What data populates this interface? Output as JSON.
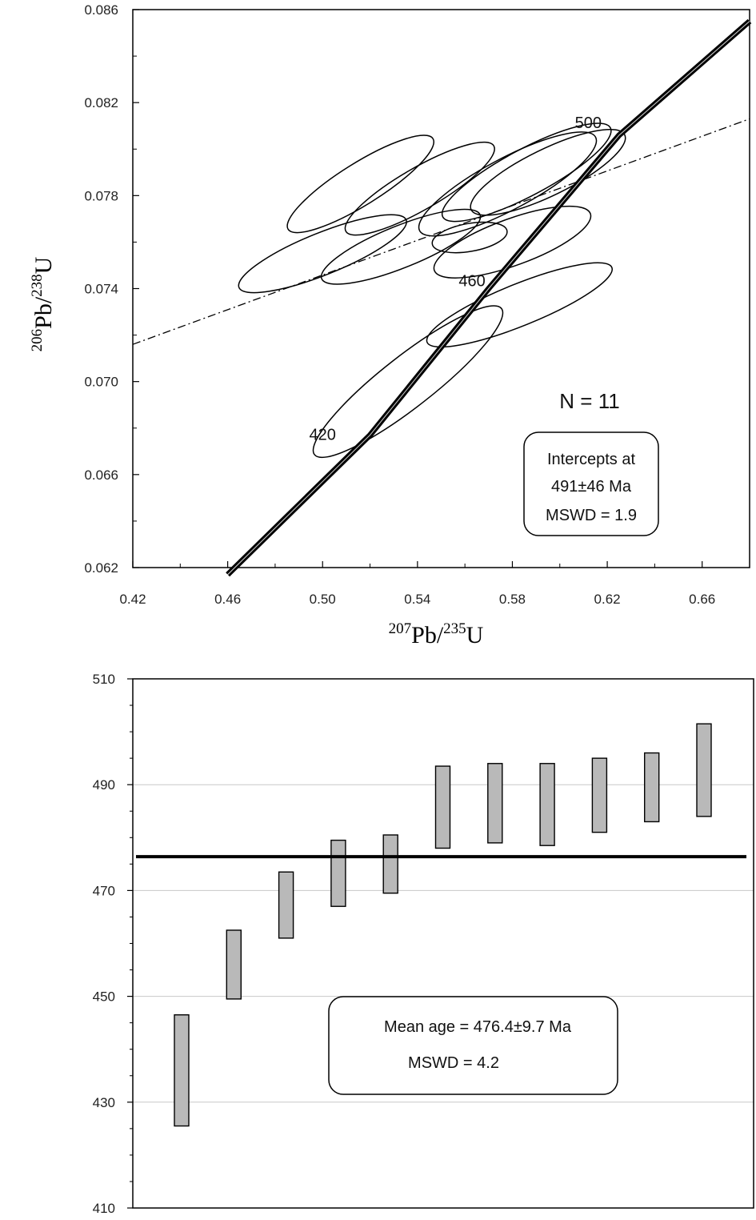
{
  "chart_data": [
    {
      "type": "scatter",
      "subtype": "concordia",
      "title": "",
      "xlabel": {
        "pb_mass": "207",
        "pb": "Pb/",
        "u_mass": "235",
        "u": "U"
      },
      "ylabel": {
        "pb_mass": "206",
        "pb": "Pb/",
        "u_mass": "238",
        "u": "U"
      },
      "xlim": [
        0.42,
        0.68
      ],
      "ylim": [
        0.062,
        0.086
      ],
      "xticks": [
        "0.42",
        "0.46",
        "0.50",
        "0.54",
        "0.58",
        "0.62",
        "0.66"
      ],
      "yticks": [
        "0.062",
        "0.066",
        "0.070",
        "0.074",
        "0.078",
        "0.082",
        "0.086"
      ],
      "ellipses": [
        {
          "cx": 0.516,
          "cy": 0.0785,
          "a": 0.036,
          "b": 0.0009,
          "angle_deg": 32
        },
        {
          "cx": 0.541,
          "cy": 0.0783,
          "a": 0.036,
          "b": 0.0009,
          "angle_deg": 30
        },
        {
          "cx": 0.5,
          "cy": 0.0755,
          "a": 0.038,
          "b": 0.0009,
          "angle_deg": 22
        },
        {
          "cx": 0.533,
          "cy": 0.0758,
          "a": 0.036,
          "b": 0.0009,
          "angle_deg": 22
        },
        {
          "cx": 0.562,
          "cy": 0.0762,
          "a": 0.016,
          "b": 0.0006,
          "angle_deg": 10
        },
        {
          "cx": 0.578,
          "cy": 0.0785,
          "a": 0.042,
          "b": 0.0011,
          "angle_deg": 28
        },
        {
          "cx": 0.586,
          "cy": 0.079,
          "a": 0.04,
          "b": 0.001,
          "angle_deg": 28
        },
        {
          "cx": 0.595,
          "cy": 0.079,
          "a": 0.036,
          "b": 0.001,
          "angle_deg": 26
        },
        {
          "cx": 0.58,
          "cy": 0.076,
          "a": 0.035,
          "b": 0.001,
          "angle_deg": 20
        },
        {
          "cx": 0.583,
          "cy": 0.0733,
          "a": 0.042,
          "b": 0.0009,
          "angle_deg": 22
        },
        {
          "cx": 0.536,
          "cy": 0.07,
          "a": 0.05,
          "b": 0.0011,
          "angle_deg": 38
        }
      ],
      "concordia": {
        "x": [
          0.46,
          0.52,
          0.57,
          0.625,
          0.68
        ],
        "y": [
          0.0617,
          0.0677,
          0.074,
          0.0806,
          0.0855
        ]
      },
      "concordia_labels": [
        {
          "label": "420",
          "x": 0.5,
          "y": 0.0675
        },
        {
          "label": "460",
          "x": 0.563,
          "y": 0.0741
        },
        {
          "label": "500",
          "x": 0.612,
          "y": 0.0809
        }
      ],
      "discordia": {
        "x": [
          0.42,
          0.68
        ],
        "y": [
          0.0716,
          0.0813
        ]
      },
      "n_label": "N = 11",
      "info_box": [
        "Intercepts at",
        "491±46 Ma",
        "MSWD = 1.9"
      ]
    },
    {
      "type": "bar",
      "subtype": "weighted-mean-age",
      "title": "",
      "xlabel": "",
      "ylabel": "",
      "ylim": [
        410,
        510
      ],
      "yticks": [
        "410",
        "430",
        "450",
        "470",
        "490",
        "510"
      ],
      "grid": true,
      "ranges": [
        {
          "low": 425.5,
          "high": 446.5
        },
        {
          "low": 449.5,
          "high": 462.5
        },
        {
          "low": 461.0,
          "high": 473.5
        },
        {
          "low": 467.0,
          "high": 479.5
        },
        {
          "low": 469.5,
          "high": 480.5
        },
        {
          "low": 478.0,
          "high": 493.5
        },
        {
          "low": 479.0,
          "high": 494.0
        },
        {
          "low": 478.5,
          "high": 494.0
        },
        {
          "low": 481.0,
          "high": 495.0
        },
        {
          "low": 483.0,
          "high": 496.0
        },
        {
          "low": 484.0,
          "high": 501.5
        }
      ],
      "mean_value": 476.4,
      "info_box": [
        "Mean age = 476.4±9.7  Ma",
        "MSWD = 4.2"
      ]
    }
  ]
}
